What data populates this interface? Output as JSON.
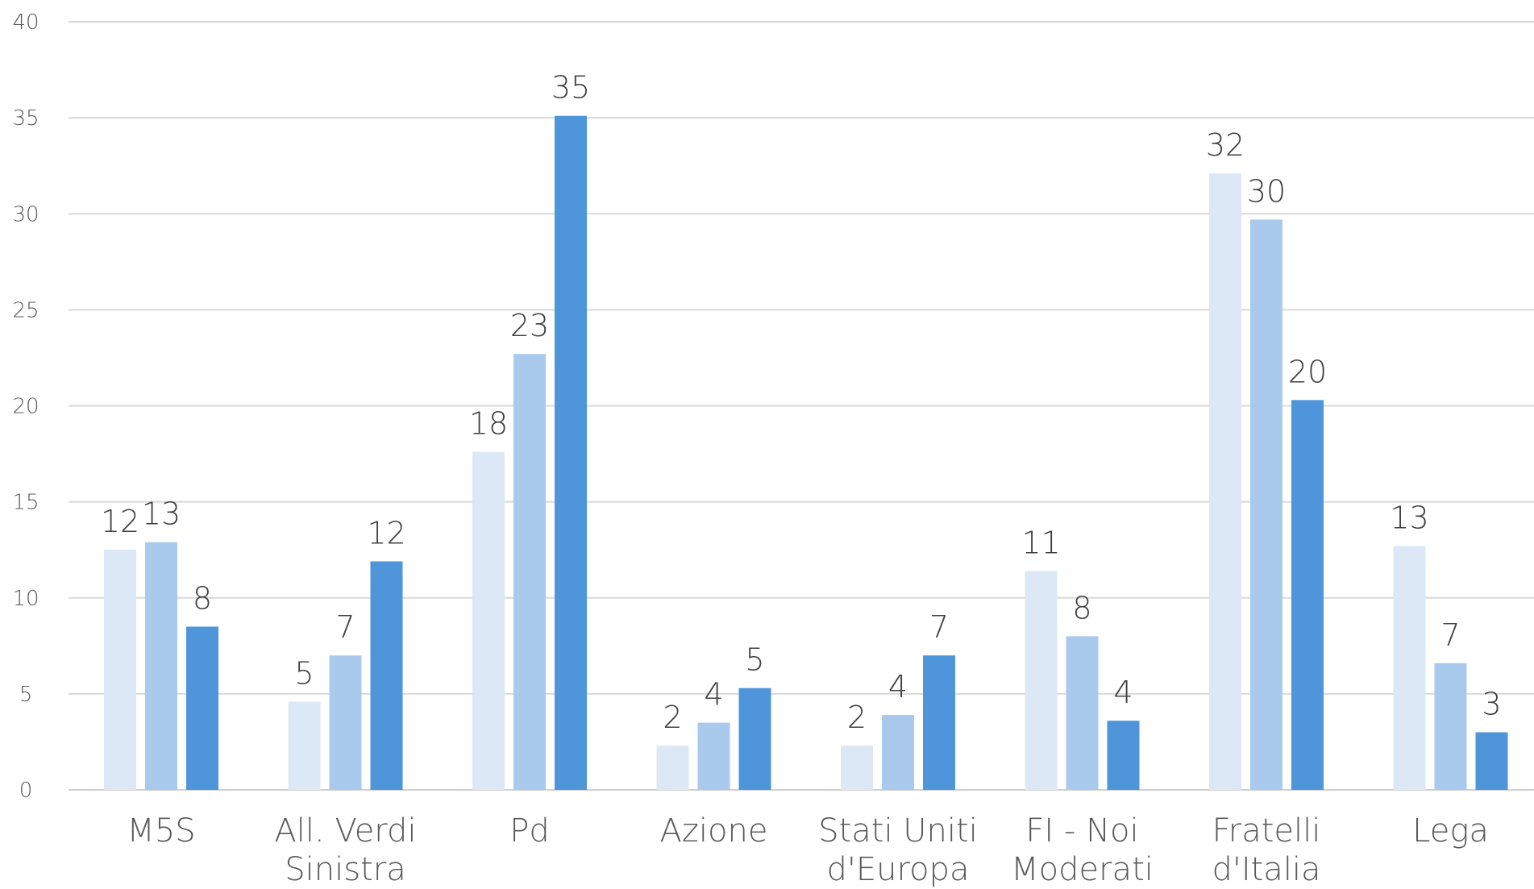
{
  "chart_data": {
    "type": "bar",
    "categories": [
      "M5S",
      "All. Verdi\nSinistra",
      "Pd",
      "Azione",
      "Stati Uniti\nd'Europa",
      "FI - Noi\nModerati",
      "Fratelli\nd'Italia",
      "Lega"
    ],
    "series": [
      {
        "values": [
          12.5,
          4.6,
          17.6,
          2.3,
          2.3,
          11.4,
          32.1,
          12.7
        ],
        "labels": [
          "12",
          "5",
          "18",
          "2",
          "2",
          "11",
          "32",
          "13"
        ],
        "color": "#dce8f6"
      },
      {
        "values": [
          12.9,
          7.0,
          22.7,
          3.5,
          3.9,
          8.0,
          29.7,
          6.6
        ],
        "labels": [
          "13",
          "7",
          "23",
          "4",
          "4",
          "8",
          "30",
          "7"
        ],
        "color": "#a9caec"
      },
      {
        "values": [
          8.5,
          11.9,
          35.1,
          5.3,
          7.0,
          3.6,
          20.3,
          3.0
        ],
        "labels": [
          "8",
          "12",
          "35",
          "5",
          "7",
          "4",
          "20",
          "3"
        ],
        "color": "#4f95da"
      }
    ],
    "ylim": [
      0,
      40
    ],
    "yticks": [
      "0",
      "5",
      "10",
      "15",
      "20",
      "25",
      "30",
      "35",
      "40"
    ],
    "grid": true,
    "xlabel": "",
    "ylabel": "",
    "title": ""
  }
}
